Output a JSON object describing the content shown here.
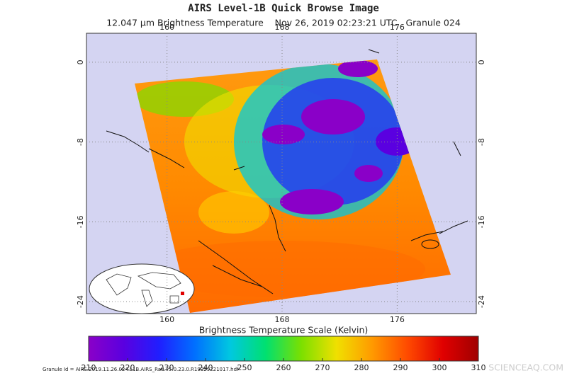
{
  "header": {
    "title": "AIRS Level-1B Quick Browse Image",
    "subtitle": "12.047 μm Brightness Temperature    Nov 26, 2019 02:23:21 UTC   Granule 024"
  },
  "map": {
    "lonlim": [
      154.4,
      181.5
    ],
    "latlim": [
      -25.2,
      2.9
    ],
    "lonticks": [
      160,
      168,
      176
    ],
    "latticks": [
      0,
      -8,
      -16,
      -24
    ],
    "grid": true
  },
  "colorbar": {
    "title": "Brightness Temperature Scale (Kelvin)",
    "lim": [
      210,
      310
    ],
    "ticks": [
      210,
      220,
      230,
      240,
      250,
      260,
      270,
      280,
      290,
      300,
      310
    ],
    "colors": [
      "#8a00c8",
      "#5a00e0",
      "#1f1fff",
      "#0070ff",
      "#00c8e0",
      "#00e070",
      "#7be000",
      "#f0e000",
      "#ff9a00",
      "#ff4a00",
      "#e00000",
      "#a00000"
    ]
  },
  "footer": {
    "granule_id": "Granule Id = AIRS.2019.11.26.024.L1B.AIRS_Rad.v5.0.23.0.R19329221017.hdf",
    "watermark": "SCIENCEAQ.COM"
  }
}
